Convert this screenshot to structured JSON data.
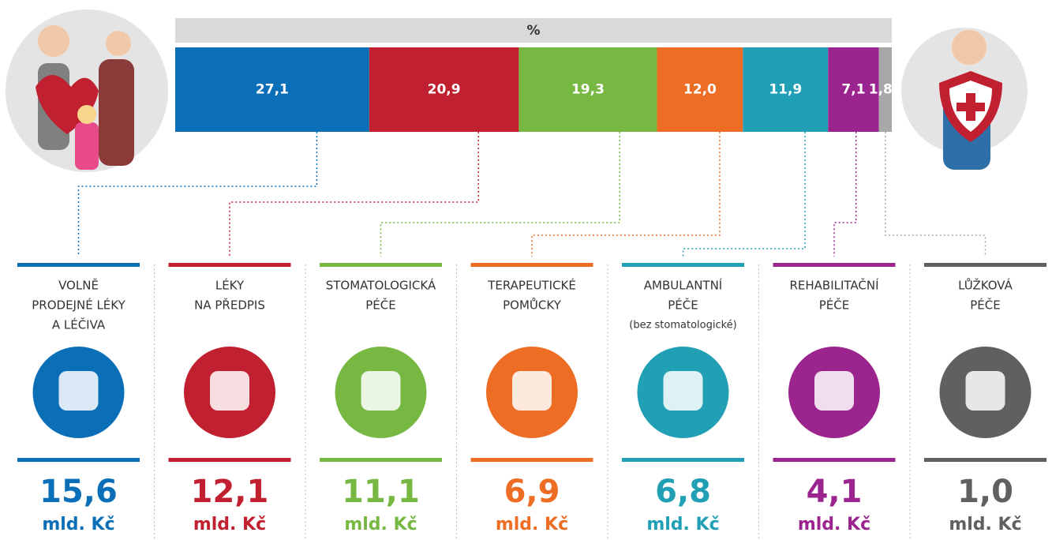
{
  "chart_data": {
    "type": "stacked-bar",
    "axis_label": "%",
    "categories": [
      [
        "VOLNĚ",
        "PRODEJNÉ LÉKY",
        "A LÉČIVA"
      ],
      [
        "LÉKY",
        "NA PŘEDPIS"
      ],
      [
        "STOMATOLOGICKÁ",
        "PÉČE"
      ],
      [
        "TERAPEUTICKÉ",
        "POMŮCKY"
      ],
      [
        "AMBULANTNÍ",
        "PÉČE"
      ],
      [
        "REHABILITAČNÍ",
        "PÉČE"
      ],
      [
        "LŮŽKOVÁ",
        "PÉČE"
      ]
    ],
    "category_notes": [
      null,
      null,
      null,
      null,
      "(bez stomatologické)",
      null,
      null
    ],
    "values": [
      27.1,
      20.9,
      19.3,
      12.0,
      11.9,
      7.1,
      1.8
    ],
    "value_labels": [
      "27,1",
      "20,9",
      "19,3",
      "12,0",
      "11,9",
      "7,1",
      "1,8"
    ],
    "colors": [
      "#0b6fb8",
      "#c0202f",
      "#77b843",
      "#ee6d25",
      "#219fb5",
      "#9b248e",
      "#a8a8a8"
    ],
    "card_colors": [
      "#0b6fb8",
      "#c0202f",
      "#77b843",
      "#ee6d25",
      "#219fb5",
      "#9b248e",
      "#606060"
    ],
    "amounts": [
      15.6,
      12.1,
      11.1,
      6.9,
      6.8,
      4.1,
      1.0
    ],
    "amount_labels": [
      "15,6",
      "12,1",
      "11,1",
      "6,9",
      "6,8",
      "4,1",
      "1,0"
    ],
    "amount_unit": "mld. Kč"
  }
}
